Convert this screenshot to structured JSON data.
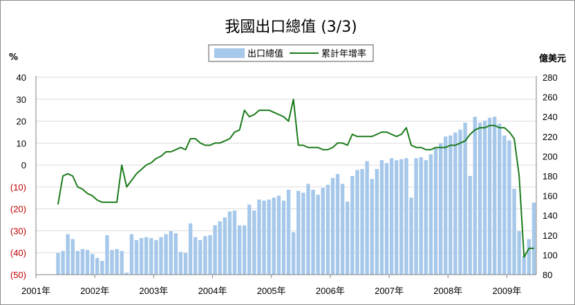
{
  "chart_data": {
    "type": "bar+line",
    "title": "我國出口總值 (3/3)",
    "left_axis_unit": "%",
    "right_axis_unit": "億美元",
    "left_ticks": [
      "40",
      "30",
      "20",
      "10",
      "0",
      "(10)",
      "(20)",
      "(30)",
      "(40)",
      "(50)"
    ],
    "right_ticks": [
      "280",
      "260",
      "240",
      "220",
      "200",
      "180",
      "160",
      "140",
      "120",
      "100",
      "80"
    ],
    "left_range": [
      -50,
      40
    ],
    "right_range": [
      80,
      280
    ],
    "x_labels": [
      "2001年",
      "2002年",
      "2003年",
      "2004年",
      "2005年",
      "2006年",
      "2007年",
      "2008年",
      "2009年"
    ],
    "start_period": "2001-01",
    "grid": true,
    "legend_position": "top-center",
    "series": [
      {
        "name": "出口總值",
        "type": "bar",
        "axis": "right",
        "color": "#a6c8ea",
        "values": [
          102,
          104,
          121,
          116,
          104,
          106,
          105,
          101,
          97,
          94,
          120,
          105,
          106,
          104,
          82,
          121,
          115,
          117,
          118,
          117,
          115,
          118,
          121,
          124,
          122,
          103,
          102,
          132,
          118,
          115,
          119,
          120,
          130,
          134,
          138,
          144,
          145,
          130,
          130,
          151,
          145,
          156,
          155,
          156,
          158,
          160,
          155,
          166,
          123,
          165,
          163,
          172,
          166,
          161,
          168,
          171,
          178,
          182,
          172,
          154,
          180,
          186,
          187,
          195,
          177,
          187,
          196,
          193,
          198,
          196,
          197,
          198,
          158,
          198,
          199,
          196,
          202,
          208,
          213,
          220,
          221,
          224,
          227,
          234,
          180,
          240,
          234,
          236,
          239,
          240,
          233,
          221,
          216,
          167,
          124,
          99,
          116,
          153
        ]
      },
      {
        "name": "累計年增率",
        "type": "line",
        "axis": "left",
        "color": "#1a7a1a",
        "values": [
          -18,
          -5,
          -4,
          -5,
          -10,
          -11,
          -13,
          -14,
          -16,
          -17,
          -17,
          -17,
          -17,
          0,
          -10,
          -7,
          -4,
          -2,
          0,
          1,
          3,
          4,
          6,
          6,
          7,
          8,
          7,
          12,
          12,
          10,
          9,
          9,
          10,
          10,
          11,
          12,
          15,
          16,
          25,
          22,
          23,
          25,
          25,
          25,
          24,
          23,
          22,
          20,
          30,
          9,
          9,
          8,
          8,
          8,
          7,
          7,
          8,
          10,
          10,
          9,
          14,
          13,
          13,
          13,
          13,
          14,
          15,
          15,
          14,
          13,
          14,
          17,
          9,
          8,
          8,
          7,
          7,
          8,
          8,
          8,
          9,
          9,
          10,
          11,
          14,
          16,
          17,
          17,
          18,
          18,
          17,
          17,
          15,
          12,
          -5,
          -42,
          -38,
          -38
        ]
      }
    ]
  }
}
